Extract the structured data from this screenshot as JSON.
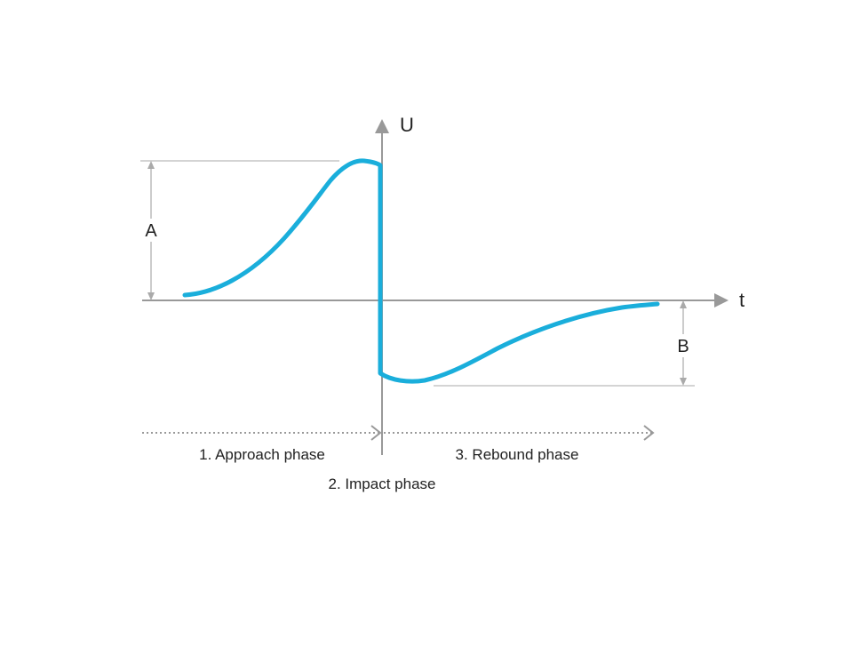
{
  "axes": {
    "y_label": "U",
    "x_label": "t"
  },
  "dimensions": {
    "a_label": "A",
    "b_label": "B"
  },
  "phases": {
    "approach": "1. Approach phase",
    "impact": "2. Impact phase",
    "rebound": "3. Rebound phase"
  },
  "colors": {
    "curve": "#1aaedb",
    "axis": "#999999",
    "guide": "#bbbbbb"
  }
}
